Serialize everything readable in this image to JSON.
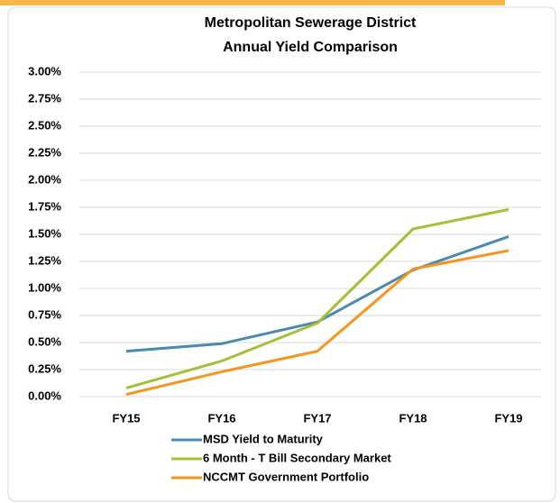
{
  "chart_data": {
    "type": "line",
    "title": [
      "Metropolitan Sewerage District",
      "Annual Yield Comparison"
    ],
    "categories": [
      "FY15",
      "FY16",
      "FY17",
      "FY18",
      "FY19"
    ],
    "series": [
      {
        "name": "MSD Yield to Maturity",
        "color": "#4a89b0",
        "values": [
          0.42,
          0.49,
          0.69,
          1.17,
          1.48
        ]
      },
      {
        "name": "6 Month - T Bill Secondary Market",
        "color": "#a6bf38",
        "values": [
          0.08,
          0.33,
          0.68,
          1.55,
          1.73
        ]
      },
      {
        "name": "NCCMT Government Portfolio",
        "color": "#f5951f",
        "values": [
          0.02,
          0.23,
          0.42,
          1.18,
          1.35
        ]
      }
    ],
    "ylim": [
      0,
      3
    ],
    "yticks": [
      {
        "value": 0,
        "label": "0.00%"
      },
      {
        "value": 0.25,
        "label": "0.25%"
      },
      {
        "value": 0.5,
        "label": "0.50%"
      },
      {
        "value": 0.75,
        "label": "0.75%"
      },
      {
        "value": 1,
        "label": "1.00%"
      },
      {
        "value": 1.25,
        "label": "1.25%"
      },
      {
        "value": 1.5,
        "label": "1.50%"
      },
      {
        "value": 1.75,
        "label": "1.75%"
      },
      {
        "value": 2,
        "label": "2.00%"
      },
      {
        "value": 2.25,
        "label": "2.25%"
      },
      {
        "value": 2.5,
        "label": "2.50%"
      },
      {
        "value": 2.75,
        "label": "2.75%"
      },
      {
        "value": 3,
        "label": "3.00%"
      }
    ],
    "grid": true,
    "legend": "bottom"
  }
}
